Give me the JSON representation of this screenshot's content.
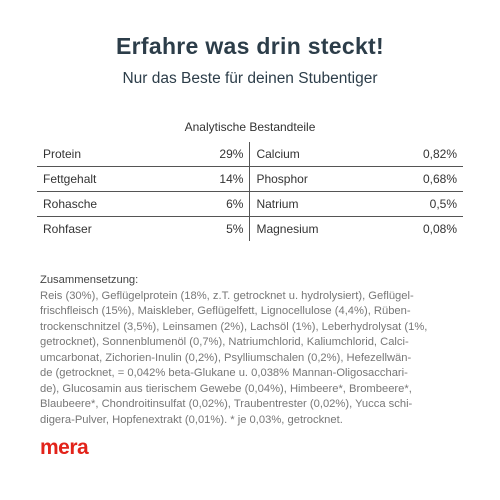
{
  "header": {
    "title": "Erfahre was drin steckt!",
    "subtitle": "Nur das Beste für deinen Stubentiger"
  },
  "table": {
    "title": "Analytische Bestandteile",
    "rows": [
      [
        "Protein",
        "29%",
        "Calcium",
        "0,82%"
      ],
      [
        "Fettgehalt",
        "14%",
        "Phosphor",
        "0,68%"
      ],
      [
        "Rohasche",
        "6%",
        "Natrium",
        "0,5%"
      ],
      [
        "Rohfaser",
        "5%",
        "Magnesium",
        "0,08%"
      ]
    ]
  },
  "composition": {
    "heading": "Zusammensetzung:",
    "lines": [
      "Reis (30%), Geflügelprotein (18%, z.T. getrocknet u. hydrolysiert), Geflügel-",
      "frischfleisch (15%), Maiskleber, Geflügelfett, Lignocellulose (4,4%), Rüben-",
      "trockenschnitzel (3,5%), Leinsamen (2%), Lachsöl (1%), Leberhydrolysat (1%,",
      "getrocknet), Sonnenblumenöl (0,7%), Natriumchlorid, Kaliumchlorid, Calci-",
      "umcarbonat, Zichorien-Inulin (0,2%), Psylliumschalen (0,2%), Hefezellwän-",
      "de (getrocknet, = 0,042% beta-Glukane u. 0,038% Mannan-Oligosacchari-",
      "de), Glucosamin aus tierischem Gewebe (0,04%), Himbeere*, Brombeere*,",
      "Blaubeere*, Chondroitinsulfat (0,02%), Traubentrester (0,02%), Yucca schi-",
      "digera-Pulver, Hopfenextrakt (0,01%). * je 0,03%, getrocknet."
    ]
  },
  "logo": "mera"
}
